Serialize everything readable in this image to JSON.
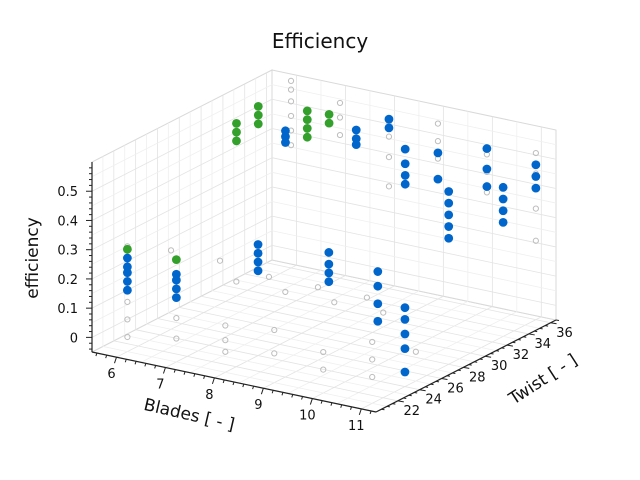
{
  "chart_data": {
    "type": "scatter",
    "projection": "3d",
    "title": "Efficiency",
    "xlabel": "Blades [ - ]",
    "ylabel": "Twist [ - ]",
    "zlabel": "efficiency",
    "xlim": [
      5.5,
      11.3
    ],
    "ylim": [
      20,
      36.5
    ],
    "zlim": [
      -0.05,
      0.6
    ],
    "x_ticks": [
      6,
      7,
      8,
      9,
      10,
      11
    ],
    "y_ticks": [
      22,
      24,
      26,
      28,
      30,
      32,
      34,
      36
    ],
    "z_ticks": [
      0,
      0.1,
      0.2,
      0.3,
      0.4,
      0.5
    ],
    "z_tick_labels": [
      "0",
      "0.1",
      "0.2",
      "0.3",
      "0.4",
      "0.5"
    ],
    "grid": true,
    "colors": {
      "all": "#bdbdbd",
      "blue": "#0066cc",
      "green": "#33a02c"
    },
    "series": [
      {
        "style": "hollow-gray",
        "color": "#bdbdbd",
        "points": [
          [
            6,
            21,
            0.0
          ],
          [
            6,
            21,
            0.06
          ],
          [
            6,
            21,
            0.12
          ],
          [
            6,
            21,
            0.19
          ],
          [
            6,
            21,
            0.23
          ],
          [
            6,
            21,
            0.27
          ],
          [
            6,
            21,
            0.31
          ],
          [
            7,
            21,
            0.03
          ],
          [
            7,
            21,
            0.1
          ],
          [
            7,
            21,
            0.17
          ],
          [
            8,
            21,
            0.02
          ],
          [
            8,
            21,
            0.06
          ],
          [
            8,
            21,
            0.11
          ],
          [
            9,
            21,
            0.05
          ],
          [
            9,
            21,
            0.13
          ],
          [
            10,
            21,
            0.03
          ],
          [
            10,
            21,
            0.09
          ],
          [
            11,
            21,
            0.04
          ],
          [
            11,
            21,
            0.1
          ],
          [
            11,
            21,
            0.16
          ],
          [
            6,
            25,
            0.22
          ],
          [
            7,
            25,
            0.22
          ],
          [
            8,
            25,
            0.2
          ],
          [
            9,
            25,
            0.2
          ],
          [
            10,
            25,
            0.2
          ],
          [
            11,
            25,
            0.05
          ],
          [
            7,
            26.5,
            0.12
          ],
          [
            8,
            26.5,
            0.12
          ],
          [
            9,
            26.5,
            0.12
          ],
          [
            10,
            26.5,
            0.12
          ],
          [
            6,
            36,
            0.37
          ],
          [
            6,
            36,
            0.42
          ],
          [
            6,
            36,
            0.47
          ],
          [
            6,
            36,
            0.52
          ],
          [
            6,
            36,
            0.56
          ],
          [
            6,
            36,
            0.59
          ],
          [
            7,
            36,
            0.44
          ],
          [
            7,
            36,
            0.5
          ],
          [
            7,
            36,
            0.55
          ],
          [
            8,
            36,
            0.3
          ],
          [
            8,
            36,
            0.4
          ],
          [
            8,
            36,
            0.47
          ],
          [
            8,
            36,
            0.52
          ],
          [
            9,
            36,
            0.43
          ],
          [
            9,
            36,
            0.49
          ],
          [
            9,
            36,
            0.55
          ],
          [
            10,
            36,
            0.35
          ],
          [
            10,
            36,
            0.42
          ],
          [
            10,
            36,
            0.48
          ],
          [
            11,
            36,
            0.22
          ],
          [
            11,
            36,
            0.33
          ],
          [
            11,
            36,
            0.45
          ],
          [
            11,
            36,
            0.52
          ]
        ]
      },
      {
        "style": "filled-blue",
        "color": "#0066cc",
        "points": [
          [
            6,
            21,
            0.16
          ],
          [
            6,
            21,
            0.19
          ],
          [
            6,
            21,
            0.22
          ],
          [
            6,
            21,
            0.24
          ],
          [
            6,
            21,
            0.27
          ],
          [
            7,
            21,
            0.17
          ],
          [
            7,
            21,
            0.2
          ],
          [
            7,
            21,
            0.23
          ],
          [
            7,
            21,
            0.25
          ],
          [
            8,
            24,
            0.24
          ],
          [
            8,
            24,
            0.27
          ],
          [
            8,
            24,
            0.3
          ],
          [
            8,
            24,
            0.33
          ],
          [
            9,
            26,
            0.2
          ],
          [
            9,
            26,
            0.23
          ],
          [
            9,
            26,
            0.26
          ],
          [
            9,
            26,
            0.3
          ],
          [
            10,
            26,
            0.1
          ],
          [
            10,
            26,
            0.16
          ],
          [
            10,
            26,
            0.22
          ],
          [
            10,
            26,
            0.27
          ],
          [
            11,
            24,
            0.0
          ],
          [
            11,
            24,
            0.08
          ],
          [
            11,
            24,
            0.13
          ],
          [
            11,
            24,
            0.18
          ],
          [
            11,
            24,
            0.22
          ],
          [
            7,
            31,
            0.51
          ],
          [
            7,
            31,
            0.53
          ],
          [
            7,
            31,
            0.55
          ],
          [
            8,
            33,
            0.5
          ],
          [
            8,
            33,
            0.52
          ],
          [
            8,
            33,
            0.55
          ],
          [
            9,
            33,
            0.4
          ],
          [
            9,
            33,
            0.43
          ],
          [
            9,
            33,
            0.47
          ],
          [
            9,
            33,
            0.52
          ],
          [
            10,
            32.5,
            0.26
          ],
          [
            10,
            32.5,
            0.3
          ],
          [
            10,
            32.5,
            0.34
          ],
          [
            10,
            32.5,
            0.38
          ],
          [
            10,
            32.5,
            0.42
          ],
          [
            11,
            33,
            0.34
          ],
          [
            11,
            33,
            0.38
          ],
          [
            11,
            33,
            0.42
          ],
          [
            11,
            33,
            0.46
          ],
          [
            8,
            36,
            0.5
          ],
          [
            8,
            36,
            0.53
          ],
          [
            9,
            36,
            0.36
          ],
          [
            9,
            36,
            0.45
          ],
          [
            10,
            36,
            0.37
          ],
          [
            10,
            36,
            0.43
          ],
          [
            10,
            36,
            0.5
          ],
          [
            11,
            36,
            0.4
          ],
          [
            11,
            36,
            0.44
          ],
          [
            11,
            36,
            0.48
          ]
        ]
      },
      {
        "style": "filled-green",
        "color": "#33a02c",
        "points": [
          [
            6,
            21,
            0.3
          ],
          [
            7,
            21,
            0.3
          ],
          [
            6,
            31,
            0.48
          ],
          [
            6,
            31,
            0.51
          ],
          [
            6,
            31,
            0.54
          ],
          [
            6,
            33,
            0.5
          ],
          [
            6,
            33,
            0.53
          ],
          [
            6,
            33,
            0.56
          ],
          [
            7,
            33,
            0.49
          ],
          [
            7,
            33,
            0.52
          ],
          [
            7,
            33,
            0.55
          ],
          [
            7,
            33,
            0.58
          ],
          [
            7,
            35,
            0.5
          ],
          [
            7,
            35,
            0.53
          ]
        ]
      }
    ]
  }
}
